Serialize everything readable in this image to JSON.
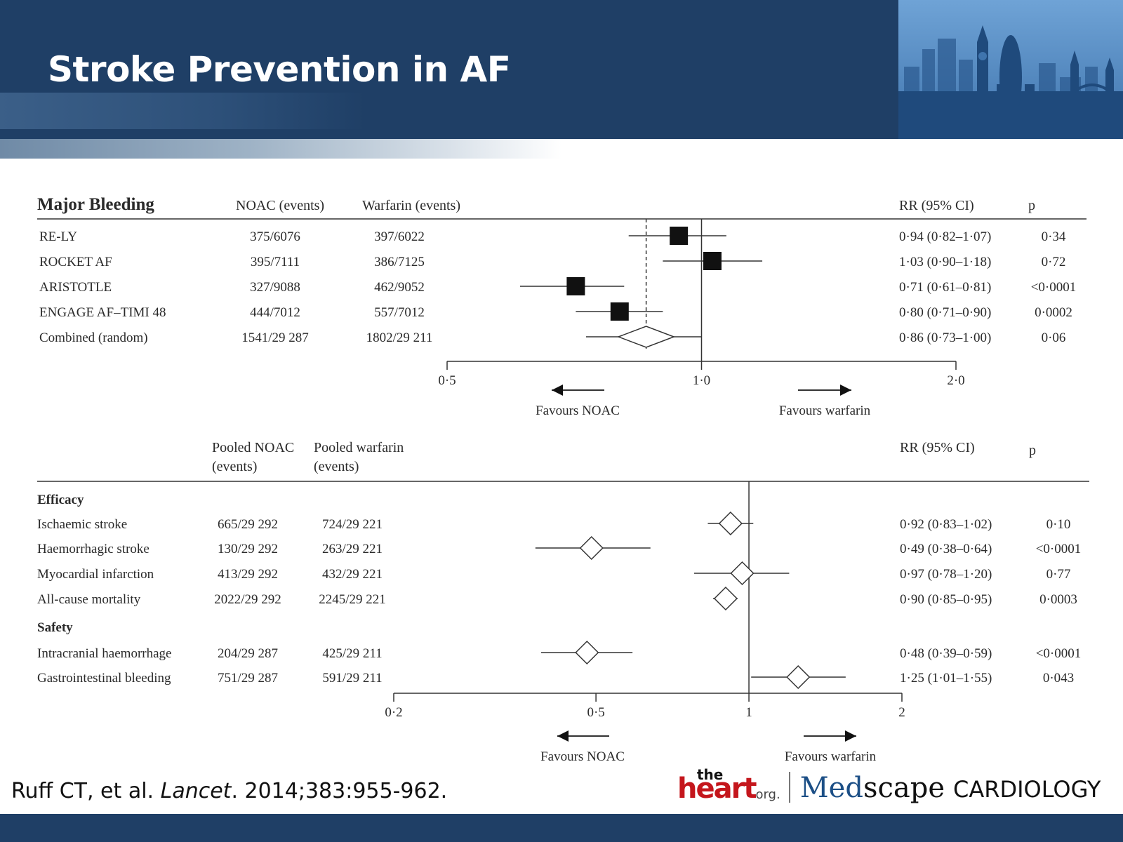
{
  "slide": {
    "title": "Stroke Prevention in AF",
    "citation_author": "Ruff CT, et al. ",
    "citation_journal": "Lancet",
    "citation_rest": ". 2014;383:955-962.",
    "logo": {
      "the": "the",
      "heart": "heart",
      "org": "org.",
      "med": "Med",
      "scape": "scape",
      "cardiology": "CARDIOLOGY"
    },
    "colors": {
      "header": "#1f3f66",
      "accent_red": "#c4161c",
      "medscape_blue": "#1c4f86"
    }
  },
  "chart_data": [
    {
      "type": "forest",
      "title": "Major Bleeding",
      "columns": {
        "noac": "NOAC (events)",
        "warfarin": "Warfarin (events)",
        "rr": "RR (95% CI)",
        "p": "p"
      },
      "scale": "log",
      "xlim": [
        0.5,
        2.0
      ],
      "ticks": [
        {
          "value": 0.5,
          "label": "0·5"
        },
        {
          "value": 1.0,
          "label": "1·0"
        },
        {
          "value": 2.0,
          "label": "2·0"
        }
      ],
      "reference_line": 1.0,
      "pooled_line": 0.86,
      "favours_left": "Favours NOAC",
      "favours_right": "Favours warfarin",
      "rows": [
        {
          "label": "RE-LY",
          "noac": "375/6076",
          "warfarin": "397/6022",
          "rr_text": "0·94 (0·82–1·07)",
          "p": "0·34",
          "rr": 0.94,
          "lo": 0.82,
          "hi": 1.07,
          "marker": "square"
        },
        {
          "label": "ROCKET AF",
          "noac": "395/7111",
          "warfarin": "386/7125",
          "rr_text": "1·03 (0·90–1·18)",
          "p": "0·72",
          "rr": 1.03,
          "lo": 0.9,
          "hi": 1.18,
          "marker": "square"
        },
        {
          "label": "ARISTOTLE",
          "noac": "327/9088",
          "warfarin": "462/9052",
          "rr_text": "0·71 (0·61–0·81)",
          "p": "<0·0001",
          "rr": 0.71,
          "lo": 0.61,
          "hi": 0.81,
          "marker": "square"
        },
        {
          "label": "ENGAGE AF–TIMI 48",
          "noac": "444/7012",
          "warfarin": "557/7012",
          "rr_text": "0·80 (0·71–0·90)",
          "p": "0·0002",
          "rr": 0.8,
          "lo": 0.71,
          "hi": 0.9,
          "marker": "square"
        },
        {
          "label": "Combined (random)",
          "noac": "1541/29 287",
          "warfarin": "1802/29 211",
          "rr_text": "0·86 (0·73–1·00)",
          "p": "0·06",
          "rr": 0.86,
          "lo": 0.73,
          "hi": 1.0,
          "marker": "diamond"
        }
      ]
    },
    {
      "type": "forest",
      "title": "",
      "columns": {
        "noac_line1": "Pooled NOAC",
        "noac_line2": "(events)",
        "warfarin_line1": "Pooled warfarin",
        "warfarin_line2": "(events)",
        "rr": "RR (95% CI)",
        "p": "p"
      },
      "scale": "log",
      "xlim": [
        0.2,
        2.0
      ],
      "ticks": [
        {
          "value": 0.2,
          "label": "0·2"
        },
        {
          "value": 0.5,
          "label": "0·5"
        },
        {
          "value": 1.0,
          "label": "1"
        },
        {
          "value": 2.0,
          "label": "2"
        }
      ],
      "reference_line": 1.0,
      "favours_left": "Favours NOAC",
      "favours_right": "Favours warfarin",
      "groups": [
        {
          "label": "Efficacy",
          "rows": [
            {
              "label": "Ischaemic stroke",
              "noac": "665/29 292",
              "warfarin": "724/29 221",
              "rr_text": "0·92 (0·83–1·02)",
              "p": "0·10",
              "rr": 0.92,
              "lo": 0.83,
              "hi": 1.02
            },
            {
              "label": "Haemorrhagic stroke",
              "noac": "130/29 292",
              "warfarin": "263/29 221",
              "rr_text": "0·49 (0·38–0·64)",
              "p": "<0·0001",
              "rr": 0.49,
              "lo": 0.38,
              "hi": 0.64
            },
            {
              "label": "Myocardial infarction",
              "noac": "413/29 292",
              "warfarin": "432/29 221",
              "rr_text": "0·97 (0·78–1·20)",
              "p": "0·77",
              "rr": 0.97,
              "lo": 0.78,
              "hi": 1.2
            },
            {
              "label": "All-cause mortality",
              "noac": "2022/29 292",
              "warfarin": "2245/29 221",
              "rr_text": "0·90 (0·85–0·95)",
              "p": "0·0003",
              "rr": 0.9,
              "lo": 0.85,
              "hi": 0.95
            }
          ]
        },
        {
          "label": "Safety",
          "rows": [
            {
              "label": "Intracranial haemorrhage",
              "noac": "204/29 287",
              "warfarin": "425/29 211",
              "rr_text": "0·48 (0·39–0·59)",
              "p": "<0·0001",
              "rr": 0.48,
              "lo": 0.39,
              "hi": 0.59
            },
            {
              "label": "Gastrointestinal bleeding",
              "noac": "751/29 287",
              "warfarin": "591/29 211",
              "rr_text": "1·25 (1·01–1·55)",
              "p": "0·043",
              "rr": 1.25,
              "lo": 1.01,
              "hi": 1.55
            }
          ]
        }
      ]
    }
  ]
}
